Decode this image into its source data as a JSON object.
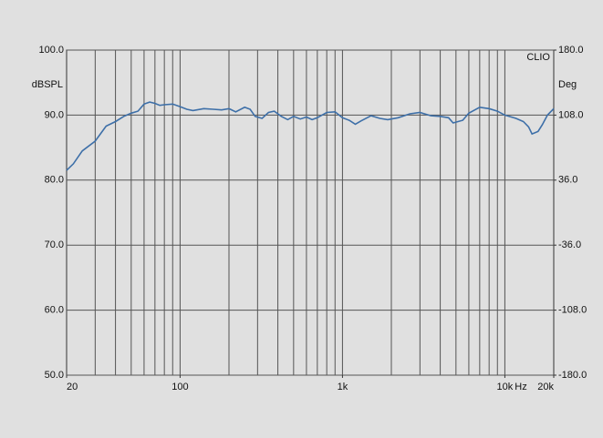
{
  "chart_data": {
    "type": "line",
    "brand": "CLIO",
    "ylabel": "dBSPL",
    "y2label": "Deg",
    "xlabel": "Hz",
    "x_log": true,
    "grid": true,
    "line_color": "#3d6fa8",
    "xlim": [
      20,
      20000
    ],
    "ylim": [
      50,
      100
    ],
    "y2lim": [
      -180,
      180
    ],
    "xticks": [
      20,
      100,
      {
        "value": 1000,
        "label": "1k"
      },
      {
        "value": 10000,
        "label": "10k"
      },
      {
        "value": 20000,
        "label": "20k"
      }
    ],
    "x_grid": [
      30,
      40,
      50,
      60,
      70,
      80,
      90,
      100,
      200,
      300,
      400,
      500,
      600,
      700,
      800,
      900,
      1000,
      2000,
      3000,
      4000,
      5000,
      6000,
      7000,
      8000,
      9000,
      10000
    ],
    "yticks": [
      {
        "value": 50,
        "label": "50.0"
      },
      {
        "value": 60,
        "label": "60.0"
      },
      {
        "value": 70,
        "label": "70.0"
      },
      {
        "value": 80,
        "label": "80.0"
      },
      {
        "value": 90,
        "label": "90.0"
      },
      {
        "value": 100,
        "label": "100.0"
      }
    ],
    "y2ticks": [
      {
        "value": -180,
        "label": "-180.0"
      },
      {
        "value": -108,
        "label": "-108.0"
      },
      {
        "value": -36,
        "label": "-36.0"
      },
      {
        "value": 36,
        "label": "36.0"
      },
      {
        "value": 108,
        "label": "108.0"
      },
      {
        "value": 180,
        "label": "180.0"
      }
    ],
    "x": [
      20,
      22,
      25,
      30,
      35,
      40,
      45,
      50,
      55,
      60,
      65,
      70,
      75,
      80,
      90,
      100,
      110,
      120,
      140,
      160,
      180,
      200,
      220,
      250,
      270,
      290,
      320,
      350,
      380,
      420,
      460,
      500,
      550,
      600,
      650,
      700,
      800,
      900,
      1000,
      1100,
      1200,
      1300,
      1500,
      1700,
      1900,
      2200,
      2600,
      3000,
      3500,
      4000,
      4500,
      4800,
      5500,
      6000,
      7000,
      8000,
      9000,
      10000,
      11700,
      13000,
      14000,
      14700,
      16000,
      17000,
      18300,
      20000
    ],
    "series": [
      {
        "values": [
          81.5,
          82.5,
          84.5,
          86,
          88.3,
          89,
          89.8,
          90.3,
          90.6,
          91.7,
          92,
          91.8,
          91.5,
          91.6,
          91.7,
          91.3,
          90.9,
          90.7,
          91,
          90.9,
          90.8,
          91,
          90.5,
          91.2,
          90.9,
          89.8,
          89.5,
          90.4,
          90.6,
          89.8,
          89.3,
          89.8,
          89.4,
          89.7,
          89.3,
          89.6,
          90.4,
          90.5,
          89.6,
          89.2,
          88.6,
          89.1,
          89.9,
          89.5,
          89.3,
          89.6,
          90.2,
          90.4,
          89.9,
          89.8,
          89.6,
          88.8,
          89.2,
          90.3,
          91.2,
          91,
          90.6,
          90,
          89.5,
          89,
          88.2,
          87.1,
          87.5,
          88.5,
          90,
          91
        ]
      }
    ]
  }
}
